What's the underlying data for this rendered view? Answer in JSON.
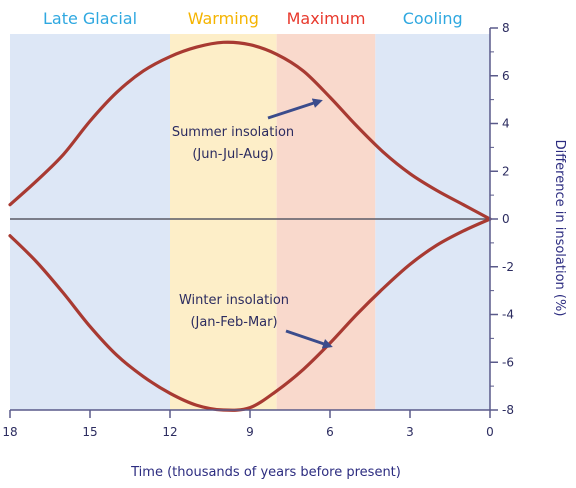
{
  "chart_data": {
    "type": "line",
    "xlabel": "Time (thousands of years before present)",
    "ylabel": "Difference in insolation (%)",
    "xlim": [
      18,
      0
    ],
    "ylim": [
      -8,
      8
    ],
    "x_ticks": [
      18,
      15,
      12,
      9,
      6,
      3,
      0
    ],
    "y_ticks": [
      8,
      6,
      4,
      2,
      0,
      -2,
      -4,
      -6,
      -8
    ],
    "y_tick_labels": [
      "8",
      "6",
      "4",
      "2",
      "0",
      "-2",
      "-4",
      "-6",
      "-8"
    ],
    "periods": [
      {
        "name": "Late Glacial",
        "from": 18,
        "to": 12,
        "color": "#dde7f6",
        "label_color": "#2fa8e0"
      },
      {
        "name": "Warming",
        "from": 12,
        "to": 8,
        "color": "#fdeec8",
        "label_color": "#f5b400"
      },
      {
        "name": "Maximum",
        "from": 8,
        "to": 4.3,
        "color": "#f9d9cc",
        "label_color": "#e8392d"
      },
      {
        "name": "Cooling",
        "from": 4.3,
        "to": 0,
        "color": "#dde7f6",
        "label_color": "#2fa8e0"
      }
    ],
    "series": [
      {
        "key": "summer",
        "x": [
          18,
          17,
          16,
          15,
          14,
          13,
          12,
          11,
          10,
          9,
          8,
          7,
          6,
          5,
          4,
          3,
          2,
          1,
          0
        ],
        "y": [
          0.6,
          1.6,
          2.7,
          4.1,
          5.3,
          6.2,
          6.8,
          7.2,
          7.4,
          7.3,
          6.9,
          6.2,
          5.1,
          3.9,
          2.8,
          1.9,
          1.2,
          0.6,
          0.0
        ],
        "color": "#a83a32"
      },
      {
        "key": "winter",
        "x": [
          18,
          17,
          16,
          15,
          14,
          13,
          12,
          11,
          10,
          9,
          8,
          7,
          6,
          5,
          4,
          3,
          2,
          1,
          0
        ],
        "y": [
          -0.7,
          -1.8,
          -3.1,
          -4.5,
          -5.7,
          -6.6,
          -7.3,
          -7.8,
          -8.0,
          -7.9,
          -7.2,
          -6.3,
          -5.2,
          -4.0,
          -2.9,
          -1.9,
          -1.1,
          -0.5,
          0.0
        ],
        "color": "#a83a32"
      }
    ],
    "annotations": [
      {
        "line1": "Summer insolation",
        "line2": "(Jun-Jul-Aug)"
      },
      {
        "line1": "Winter insolation",
        "line2": "(Jan-Feb-Mar)"
      }
    ]
  }
}
